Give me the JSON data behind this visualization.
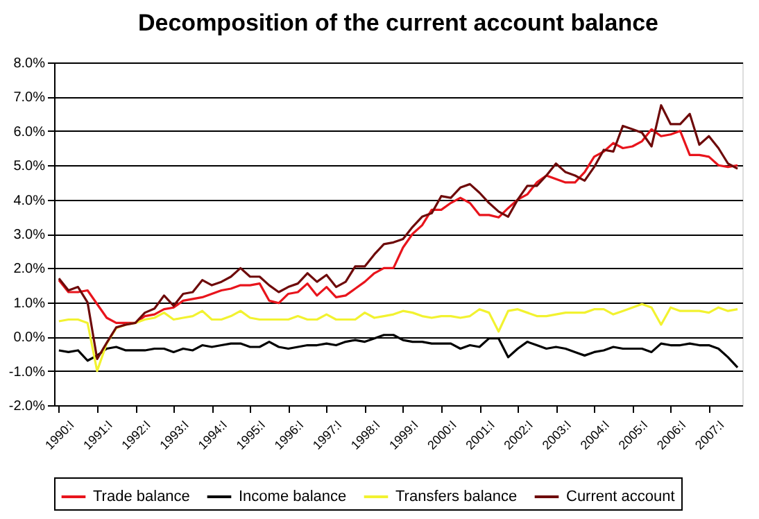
{
  "chart_data": {
    "type": "line",
    "title": "Decomposition of the current account balance",
    "categories": [
      "1990:I",
      null,
      null,
      null,
      "1991:I",
      null,
      null,
      null,
      "1992:I",
      null,
      null,
      null,
      "1993:I",
      null,
      null,
      null,
      "1994:I",
      null,
      null,
      null,
      "1995:I",
      null,
      null,
      null,
      "1996:I",
      null,
      null,
      null,
      "1997:I",
      null,
      null,
      null,
      "1998:I",
      null,
      null,
      null,
      "1999:I",
      null,
      null,
      null,
      "2000:I",
      null,
      null,
      null,
      "2001:I",
      null,
      null,
      null,
      "2002:I",
      null,
      null,
      null,
      "2003:I",
      null,
      null,
      null,
      "2004:I",
      null,
      null,
      null,
      "2005:I",
      null,
      null,
      null,
      "2006:I",
      null,
      null,
      null,
      "2007:I",
      null,
      null,
      null
    ],
    "series": [
      {
        "name": "Trade balance",
        "color": "#e8141c",
        "values": [
          1.65,
          1.3,
          1.3,
          1.35,
          0.95,
          0.55,
          0.4,
          0.4,
          0.4,
          0.6,
          0.65,
          0.8,
          0.85,
          1.05,
          1.1,
          1.15,
          1.25,
          1.35,
          1.4,
          1.5,
          1.5,
          1.55,
          1.05,
          0.98,
          1.25,
          1.3,
          1.55,
          1.2,
          1.45,
          1.15,
          1.2,
          1.4,
          1.6,
          1.85,
          2.0,
          2.0,
          2.6,
          3.0,
          3.25,
          3.7,
          3.7,
          3.9,
          4.05,
          3.9,
          3.55,
          3.55,
          3.48,
          3.75,
          4.0,
          4.15,
          4.5,
          4.7,
          4.6,
          4.5,
          4.5,
          4.8,
          5.25,
          5.4,
          5.65,
          5.5,
          5.55,
          5.7,
          6.05,
          5.85,
          5.9,
          6.0,
          5.3,
          5.3,
          5.25,
          5.0,
          4.95,
          5.0
        ]
      },
      {
        "name": "Income balance",
        "color": "#000000",
        "values": [
          -0.4,
          -0.45,
          -0.4,
          -0.7,
          -0.55,
          -0.35,
          -0.3,
          -0.4,
          -0.4,
          -0.4,
          -0.35,
          -0.35,
          -0.45,
          -0.35,
          -0.4,
          -0.25,
          -0.3,
          -0.25,
          -0.2,
          -0.2,
          -0.3,
          -0.3,
          -0.15,
          -0.3,
          -0.35,
          -0.3,
          -0.25,
          -0.25,
          -0.2,
          -0.25,
          -0.15,
          -0.1,
          -0.15,
          -0.05,
          0.05,
          0.05,
          -0.1,
          -0.15,
          -0.15,
          -0.2,
          -0.2,
          -0.2,
          -0.35,
          -0.25,
          -0.3,
          -0.05,
          -0.05,
          -0.6,
          -0.35,
          -0.15,
          -0.25,
          -0.35,
          -0.3,
          -0.35,
          -0.45,
          -0.55,
          -0.45,
          -0.4,
          -0.3,
          -0.35,
          -0.35,
          -0.35,
          -0.45,
          -0.2,
          -0.25,
          -0.25,
          -0.2,
          -0.25,
          -0.25,
          -0.35,
          -0.6,
          -0.9
        ]
      },
      {
        "name": "Transfers balance",
        "color": "#f2f230",
        "values": [
          0.45,
          0.5,
          0.5,
          0.4,
          -1.0,
          -0.2,
          0.25,
          0.35,
          0.4,
          0.5,
          0.55,
          0.7,
          0.5,
          0.55,
          0.6,
          0.75,
          0.5,
          0.5,
          0.6,
          0.75,
          0.55,
          0.5,
          0.5,
          0.5,
          0.5,
          0.6,
          0.5,
          0.5,
          0.65,
          0.5,
          0.5,
          0.5,
          0.7,
          0.55,
          0.6,
          0.65,
          0.75,
          0.7,
          0.6,
          0.55,
          0.6,
          0.6,
          0.55,
          0.6,
          0.8,
          0.7,
          0.15,
          0.75,
          0.8,
          0.7,
          0.6,
          0.6,
          0.65,
          0.7,
          0.7,
          0.7,
          0.8,
          0.8,
          0.65,
          0.75,
          0.85,
          0.95,
          0.85,
          0.35,
          0.85,
          0.75,
          0.75,
          0.75,
          0.7,
          0.85,
          0.75,
          0.8
        ]
      },
      {
        "name": "Current account",
        "color": "#6e0a0a",
        "values": [
          1.7,
          1.35,
          1.45,
          1.0,
          -0.65,
          -0.18,
          0.27,
          0.35,
          0.4,
          0.7,
          0.82,
          1.2,
          0.9,
          1.25,
          1.3,
          1.65,
          1.5,
          1.6,
          1.75,
          2.0,
          1.75,
          1.75,
          1.5,
          1.3,
          1.45,
          1.55,
          1.85,
          1.6,
          1.8,
          1.45,
          1.6,
          2.05,
          2.05,
          2.4,
          2.7,
          2.75,
          2.85,
          3.2,
          3.5,
          3.6,
          4.1,
          4.05,
          4.35,
          4.45,
          4.2,
          3.9,
          3.65,
          3.5,
          4.0,
          4.4,
          4.4,
          4.7,
          5.05,
          4.8,
          4.7,
          4.55,
          4.95,
          5.45,
          5.4,
          6.15,
          6.05,
          5.95,
          5.55,
          6.75,
          6.2,
          6.2,
          6.5,
          5.6,
          5.85,
          5.5,
          5.05,
          4.9
        ]
      }
    ],
    "ylim": [
      -2,
      8
    ],
    "yticks": [
      {
        "value": -2,
        "label": "-2.0%"
      },
      {
        "value": -1,
        "label": "-1.0%"
      },
      {
        "value": 0,
        "label": "0.0%"
      },
      {
        "value": 1,
        "label": "1.0%"
      },
      {
        "value": 2,
        "label": "2.0%"
      },
      {
        "value": 3,
        "label": "3.0%"
      },
      {
        "value": 4,
        "label": "4.0%"
      },
      {
        "value": 5,
        "label": "5.0%"
      },
      {
        "value": 6,
        "label": "6.0%"
      },
      {
        "value": 7,
        "label": "7.0%"
      },
      {
        "value": 8,
        "label": "8.0%"
      }
    ],
    "grid": "y",
    "legend": "bottom",
    "marker": "none",
    "line_style": "solid"
  }
}
